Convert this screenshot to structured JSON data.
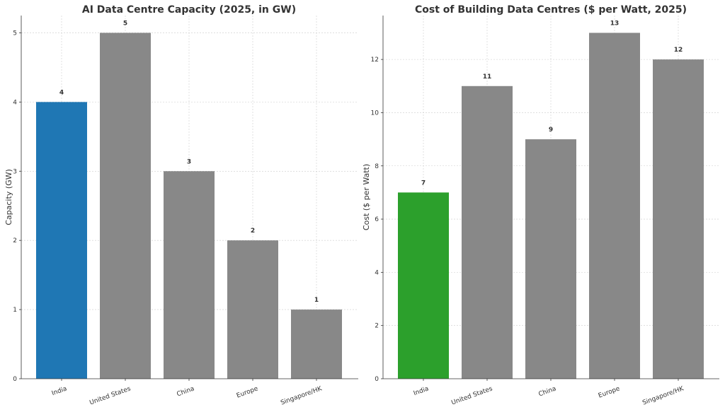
{
  "chart_data": [
    {
      "type": "bar",
      "title": "AI Data Centre Capacity (2025, in GW)",
      "xlabel": "",
      "ylabel": "Capacity (GW)",
      "categories": [
        "India",
        "United States",
        "China",
        "Europe",
        "Singapore/HK"
      ],
      "values": [
        4,
        5,
        3,
        2,
        1
      ],
      "bar_colors": [
        "#1f77b4",
        "#888888",
        "#888888",
        "#888888",
        "#888888"
      ],
      "ylim": [
        0,
        5.25
      ],
      "yticks": [
        0,
        1,
        2,
        3,
        4,
        5
      ],
      "grid": true
    },
    {
      "type": "bar",
      "title": "Cost of Building Data Centres ($ per Watt, 2025)",
      "xlabel": "",
      "ylabel": "Cost ($ per Watt)",
      "categories": [
        "India",
        "United States",
        "China",
        "Europe",
        "Singapore/HK"
      ],
      "values": [
        7,
        11,
        9,
        13,
        12
      ],
      "bar_colors": [
        "#2ca02c",
        "#888888",
        "#888888",
        "#888888",
        "#888888"
      ],
      "ylim": [
        0,
        13.65
      ],
      "yticks": [
        0,
        2,
        4,
        6,
        8,
        10,
        12
      ],
      "grid": true
    }
  ]
}
